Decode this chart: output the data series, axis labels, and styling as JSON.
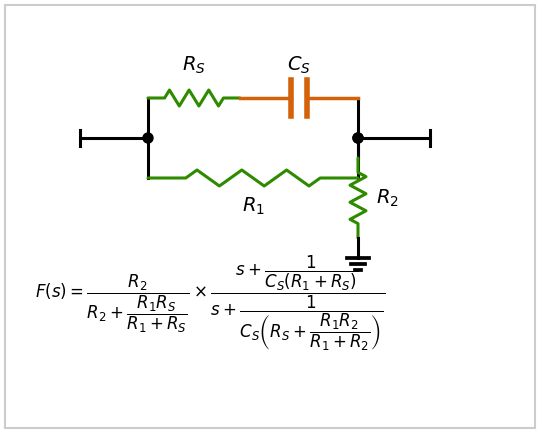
{
  "background_color": "#ffffff",
  "border_color": "#cccccc",
  "resistor_color": "#2e8b00",
  "capacitor_color": "#d4620a",
  "wire_color": "#000000",
  "dot_color": "#000000",
  "title": "",
  "figsize": [
    5.4,
    4.33
  ],
  "dpi": 100
}
